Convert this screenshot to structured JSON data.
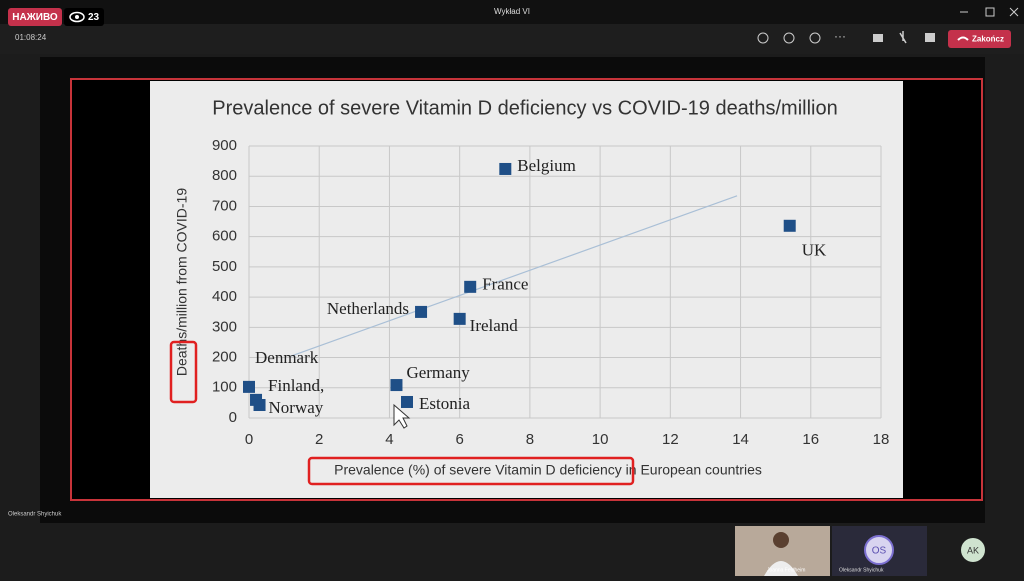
{
  "app": {
    "live_badge": "НАЖИВО",
    "viewers": "23",
    "window_title": "Wykład VI",
    "timer": "01:08:24",
    "end_button": "Zakończ",
    "presenter_name": "Oleksandr Shyichuk",
    "participants": [
      {
        "name": "Joanna Feldheim"
      },
      {
        "name": "Oleksandr Shyichuk",
        "initials": "OS"
      },
      {
        "initials": "AK"
      }
    ]
  },
  "chart_data": {
    "type": "scatter",
    "title": "Prevalence of severe Vitamin D deficiency vs COVID-19 deaths/million",
    "x_label": "Prevalence (%) of severe Vitamin D deficiency in European countries",
    "y_label": "Deaths/million from COVID-19",
    "labels": [
      "Belgium",
      "UK",
      "France",
      "Netherlands",
      "Ireland",
      "Germany",
      "Estonia",
      "Denmark",
      "Finland,",
      "Norway"
    ],
    "x": [
      7.3,
      15.4,
      6.3,
      4.9,
      6.0,
      4.2,
      4.5,
      0,
      0.2,
      0.3
    ],
    "values": [
      824,
      636,
      434,
      351,
      328,
      109,
      53,
      103,
      60,
      43
    ],
    "color": "#1f4f87",
    "trend_line": {
      "x": [
        1.2,
        13.9
      ],
      "values": [
        205,
        735
      ],
      "color": "#a9bfd6"
    },
    "xlim": [
      0,
      18
    ],
    "xticks": [
      0,
      2,
      4,
      6,
      8,
      10,
      12,
      14,
      16,
      18
    ],
    "ylim": [
      0,
      900
    ],
    "yticks": [
      0,
      100,
      200,
      300,
      400,
      500,
      600,
      700,
      800,
      900
    ],
    "grid": true
  }
}
